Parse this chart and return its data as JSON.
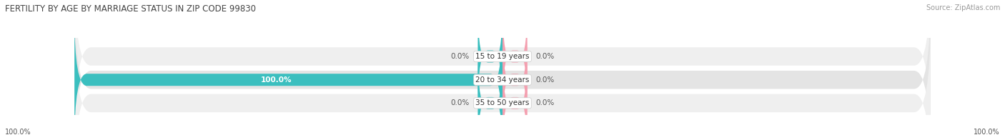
{
  "title": "FERTILITY BY AGE BY MARRIAGE STATUS IN ZIP CODE 99830",
  "source": "Source: ZipAtlas.com",
  "categories": [
    "15 to 19 years",
    "20 to 34 years",
    "35 to 50 years"
  ],
  "married_values": [
    0.0,
    100.0,
    0.0
  ],
  "unmarried_values": [
    0.0,
    0.0,
    0.0
  ],
  "married_color": "#3bbfbf",
  "unmarried_color": "#f4a0b0",
  "row_bg_color_odd": "#efefef",
  "row_bg_color_even": "#e4e4e4",
  "title_fontsize": 8.5,
  "source_fontsize": 7,
  "label_fontsize": 7.5,
  "legend_fontsize": 8,
  "bg_color": "#ffffff",
  "label_color_outside": "#555555",
  "label_color_inside": "#ffffff",
  "title_color": "#444444"
}
